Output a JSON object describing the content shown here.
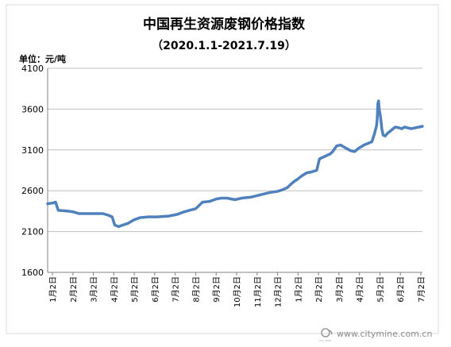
{
  "chart_data": {
    "type": "line",
    "title": "中国再生资源废钢价格指数",
    "subtitle": "（2020.1.1-2021.7.19）",
    "unit_label": "单位：元/吨",
    "ylim": [
      1600,
      4100
    ],
    "y_ticks": [
      1600,
      2100,
      2600,
      3100,
      3600,
      4100
    ],
    "x_tick_labels": [
      "1月2日",
      "2月2日",
      "3月2日",
      "4月2日",
      "5月2日",
      "6月2日",
      "7月2日",
      "8月2日",
      "9月2日",
      "10月2日",
      "11月2日",
      "12月2日",
      "1月2日",
      "2月2日",
      "3月2日",
      "4月2日",
      "5月2日",
      "6月2日",
      "7月2日"
    ],
    "grid": "horizontal",
    "legend": "none",
    "line_color": "#4f81bd",
    "series": [
      {
        "x": [
          "2020-01-02",
          "2020-01-10",
          "2020-01-14",
          "2020-01-18",
          "2020-02-02",
          "2020-02-10",
          "2020-02-18",
          "2020-03-02",
          "2020-03-15",
          "2020-03-25",
          "2020-04-02",
          "2020-04-08",
          "2020-04-12",
          "2020-04-18",
          "2020-04-24",
          "2020-05-02",
          "2020-05-10",
          "2020-05-20",
          "2020-06-02",
          "2020-06-15",
          "2020-07-02",
          "2020-07-15",
          "2020-07-25",
          "2020-08-02",
          "2020-08-12",
          "2020-08-22",
          "2020-09-02",
          "2020-09-12",
          "2020-09-20",
          "2020-09-28",
          "2020-10-10",
          "2020-10-20",
          "2020-11-02",
          "2020-11-12",
          "2020-11-22",
          "2020-12-02",
          "2020-12-12",
          "2020-12-20",
          "2020-12-28",
          "2021-01-02",
          "2021-01-08",
          "2021-01-12",
          "2021-01-18",
          "2021-01-26",
          "2021-02-02",
          "2021-02-06",
          "2021-02-10",
          "2021-02-14",
          "2021-02-22",
          "2021-03-02",
          "2021-03-06",
          "2021-03-12",
          "2021-03-18",
          "2021-03-24",
          "2021-04-02",
          "2021-04-08",
          "2021-04-14",
          "2021-04-22",
          "2021-04-28",
          "2021-05-04",
          "2021-05-08",
          "2021-05-11",
          "2021-05-12",
          "2021-05-13",
          "2021-05-14",
          "2021-05-15",
          "2021-05-17",
          "2021-05-19",
          "2021-05-21",
          "2021-05-24",
          "2021-05-27",
          "2021-06-02",
          "2021-06-08",
          "2021-06-14",
          "2021-06-18",
          "2021-06-22",
          "2021-07-02",
          "2021-07-08",
          "2021-07-14",
          "2021-07-19"
        ],
        "values": [
          2440,
          2450,
          2460,
          2360,
          2350,
          2340,
          2320,
          2320,
          2320,
          2320,
          2300,
          2280,
          2180,
          2160,
          2180,
          2200,
          2240,
          2270,
          2280,
          2280,
          2290,
          2310,
          2340,
          2360,
          2380,
          2460,
          2470,
          2500,
          2510,
          2510,
          2490,
          2510,
          2520,
          2540,
          2560,
          2580,
          2590,
          2610,
          2640,
          2680,
          2720,
          2740,
          2780,
          2820,
          2830,
          2840,
          2850,
          2990,
          3020,
          3050,
          3080,
          3150,
          3160,
          3130,
          3090,
          3080,
          3120,
          3160,
          3180,
          3200,
          3300,
          3400,
          3480,
          3670,
          3700,
          3600,
          3500,
          3350,
          3280,
          3270,
          3300,
          3340,
          3380,
          3370,
          3360,
          3380,
          3360,
          3370,
          3380,
          3390
        ]
      }
    ]
  },
  "watermark": {
    "brand_small": "CITY MINE",
    "url": "www.citymine.com.cn"
  }
}
